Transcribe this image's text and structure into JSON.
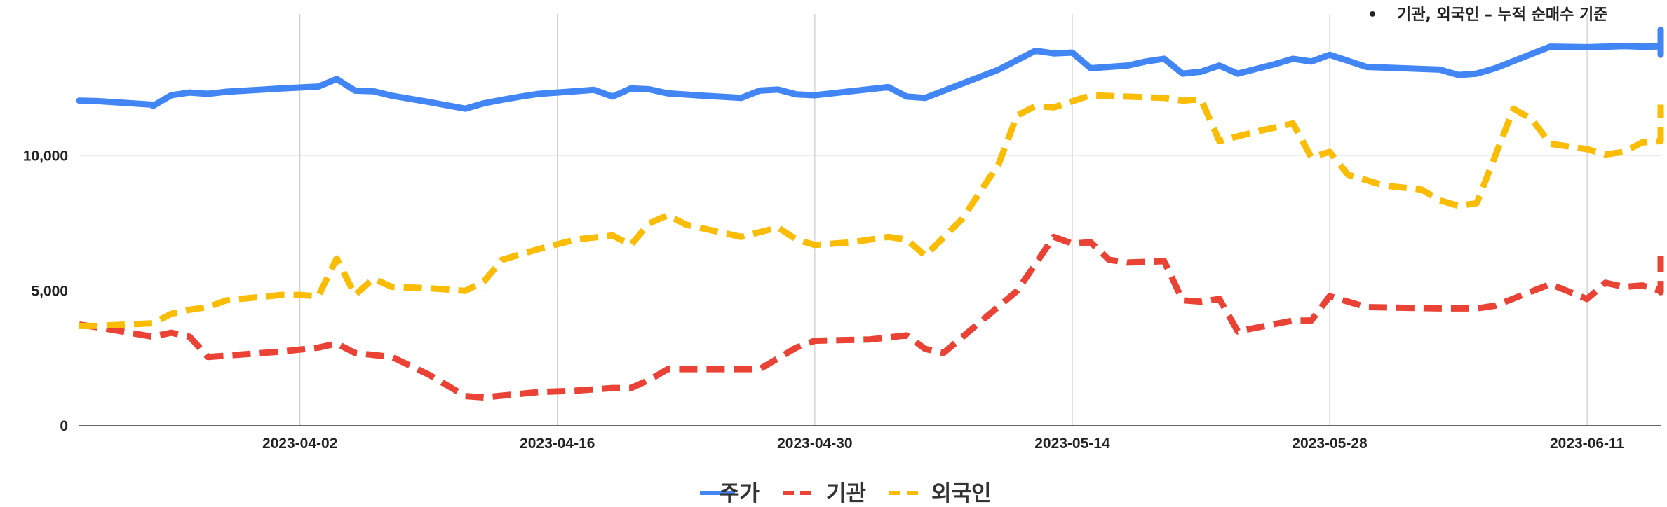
{
  "note": {
    "bullet": "•",
    "text": "기관, 외국인 – 누적 순매수 기준"
  },
  "chart_data": {
    "type": "line",
    "x_axis": "date",
    "x_range": [
      "2023-03-21",
      "2023-06-15"
    ],
    "ylim": [
      0,
      15000
    ],
    "yticks": [
      0,
      5000,
      10000
    ],
    "ytick_labels": [
      "0",
      "5,000",
      "10,000"
    ],
    "xticks": [
      "2023-04-02",
      "2023-04-16",
      "2023-04-30",
      "2023-05-14",
      "2023-05-28",
      "2023-06-11"
    ],
    "grid": {
      "vertical": true,
      "horizontal": true
    },
    "legend_position": "bottom",
    "series": [
      {
        "name": "주가",
        "color": "#4285F4",
        "style": "solid",
        "points": [
          [
            "2023-03-21",
            12050
          ],
          [
            "2023-03-22",
            12030
          ],
          [
            "2023-03-25",
            11900
          ],
          [
            "2023-03-25",
            11850
          ],
          [
            "2023-03-26",
            12250
          ],
          [
            "2023-03-27",
            12350
          ],
          [
            "2023-03-28",
            12300
          ],
          [
            "2023-03-29",
            12380
          ],
          [
            "2023-04-01",
            12500
          ],
          [
            "2023-04-03",
            12570
          ],
          [
            "2023-04-04",
            12850
          ],
          [
            "2023-04-05",
            12420
          ],
          [
            "2023-04-06",
            12400
          ],
          [
            "2023-04-07",
            12230
          ],
          [
            "2023-04-09",
            12000
          ],
          [
            "2023-04-11",
            11750
          ],
          [
            "2023-04-12",
            11950
          ],
          [
            "2023-04-13",
            12080
          ],
          [
            "2023-04-14",
            12200
          ],
          [
            "2023-04-15",
            12300
          ],
          [
            "2023-04-17",
            12400
          ],
          [
            "2023-04-18",
            12450
          ],
          [
            "2023-04-19",
            12200
          ],
          [
            "2023-04-20",
            12500
          ],
          [
            "2023-04-21",
            12470
          ],
          [
            "2023-04-22",
            12320
          ],
          [
            "2023-04-24",
            12230
          ],
          [
            "2023-04-26",
            12150
          ],
          [
            "2023-04-27",
            12420
          ],
          [
            "2023-04-28",
            12460
          ],
          [
            "2023-04-29",
            12280
          ],
          [
            "2023-04-30",
            12250
          ],
          [
            "2023-05-02",
            12400
          ],
          [
            "2023-05-04",
            12550
          ],
          [
            "2023-05-05",
            12200
          ],
          [
            "2023-05-06",
            12150
          ],
          [
            "2023-05-10",
            13200
          ],
          [
            "2023-05-12",
            13900
          ],
          [
            "2023-05-13",
            13800
          ],
          [
            "2023-05-14",
            13830
          ],
          [
            "2023-05-15",
            13250
          ],
          [
            "2023-05-17",
            13350
          ],
          [
            "2023-05-18",
            13500
          ],
          [
            "2023-05-19",
            13600
          ],
          [
            "2023-05-20",
            13050
          ],
          [
            "2023-05-21",
            13120
          ],
          [
            "2023-05-22",
            13350
          ],
          [
            "2023-05-23",
            13050
          ],
          [
            "2023-05-25",
            13400
          ],
          [
            "2023-05-26",
            13600
          ],
          [
            "2023-05-27",
            13500
          ],
          [
            "2023-05-28",
            13750
          ],
          [
            "2023-05-30",
            13300
          ],
          [
            "2023-06-03",
            13200
          ],
          [
            "2023-06-04",
            13000
          ],
          [
            "2023-06-05",
            13050
          ],
          [
            "2023-06-06",
            13250
          ],
          [
            "2023-06-09",
            14050
          ],
          [
            "2023-06-11",
            14030
          ],
          [
            "2023-06-13",
            14070
          ],
          [
            "2023-06-14",
            14050
          ],
          [
            "2023-06-15",
            14060
          ],
          [
            "2023-06-15",
            13820
          ],
          [
            "2023-06-15",
            13750
          ],
          [
            "2023-06-15",
            13830
          ],
          [
            "2023-06-15",
            14680
          ]
        ]
      },
      {
        "name": "기관",
        "color": "#EA4335",
        "style": "dashed",
        "points": [
          [
            "2023-03-21",
            3750
          ],
          [
            "2023-03-22",
            3650
          ],
          [
            "2023-03-25",
            3300
          ],
          [
            "2023-03-26",
            3450
          ],
          [
            "2023-03-27",
            3300
          ],
          [
            "2023-03-28",
            2550
          ],
          [
            "2023-03-29",
            2600
          ],
          [
            "2023-04-01",
            2750
          ],
          [
            "2023-04-03",
            2900
          ],
          [
            "2023-04-04",
            3050
          ],
          [
            "2023-04-05",
            2700
          ],
          [
            "2023-04-07",
            2550
          ],
          [
            "2023-04-09",
            1900
          ],
          [
            "2023-04-11",
            1100
          ],
          [
            "2023-04-12",
            1050
          ],
          [
            "2023-04-15",
            1250
          ],
          [
            "2023-04-17",
            1300
          ],
          [
            "2023-04-19",
            1400
          ],
          [
            "2023-04-20",
            1400
          ],
          [
            "2023-04-21",
            1700
          ],
          [
            "2023-04-22",
            2100
          ],
          [
            "2023-04-23",
            2100
          ],
          [
            "2023-04-27",
            2100
          ],
          [
            "2023-04-29",
            2900
          ],
          [
            "2023-04-30",
            3150
          ],
          [
            "2023-05-03",
            3200
          ],
          [
            "2023-05-05",
            3350
          ],
          [
            "2023-05-06",
            2850
          ],
          [
            "2023-05-07",
            2700
          ],
          [
            "2023-05-11",
            5000
          ],
          [
            "2023-05-13",
            7000
          ],
          [
            "2023-05-14",
            6750
          ],
          [
            "2023-05-15",
            6800
          ],
          [
            "2023-05-16",
            6150
          ],
          [
            "2023-05-17",
            6050
          ],
          [
            "2023-05-19",
            6100
          ],
          [
            "2023-05-20",
            4650
          ],
          [
            "2023-05-21",
            4600
          ],
          [
            "2023-05-22",
            4700
          ],
          [
            "2023-05-23",
            3500
          ],
          [
            "2023-05-26",
            3900
          ],
          [
            "2023-05-27",
            3900
          ],
          [
            "2023-05-28",
            4800
          ],
          [
            "2023-05-30",
            4400
          ],
          [
            "2023-06-03",
            4350
          ],
          [
            "2023-06-05",
            4350
          ],
          [
            "2023-06-06",
            4450
          ],
          [
            "2023-06-09",
            5250
          ],
          [
            "2023-06-11",
            4700
          ],
          [
            "2023-06-12",
            5300
          ],
          [
            "2023-06-13",
            5150
          ],
          [
            "2023-06-14",
            5200
          ],
          [
            "2023-06-15",
            5000
          ],
          [
            "2023-06-15",
            4950
          ],
          [
            "2023-06-15",
            6300
          ]
        ]
      },
      {
        "name": "외국인",
        "color": "#FBBC04",
        "style": "dashed",
        "points": [
          [
            "2023-03-21",
            3700
          ],
          [
            "2023-03-22",
            3700
          ],
          [
            "2023-03-25",
            3800
          ],
          [
            "2023-03-26",
            4150
          ],
          [
            "2023-03-27",
            4300
          ],
          [
            "2023-03-28",
            4400
          ],
          [
            "2023-03-29",
            4650
          ],
          [
            "2023-04-01",
            4850
          ],
          [
            "2023-04-02",
            4850
          ],
          [
            "2023-04-03",
            4800
          ],
          [
            "2023-04-04",
            6200
          ],
          [
            "2023-04-05",
            4850
          ],
          [
            "2023-04-06",
            5450
          ],
          [
            "2023-04-07",
            5150
          ],
          [
            "2023-04-09",
            5100
          ],
          [
            "2023-04-11",
            5000
          ],
          [
            "2023-04-12",
            5350
          ],
          [
            "2023-04-13",
            6150
          ],
          [
            "2023-04-15",
            6550
          ],
          [
            "2023-04-17",
            6900
          ],
          [
            "2023-04-19",
            7050
          ],
          [
            "2023-04-20",
            6700
          ],
          [
            "2023-04-21",
            7500
          ],
          [
            "2023-04-22",
            7800
          ],
          [
            "2023-04-23",
            7450
          ],
          [
            "2023-04-26",
            7000
          ],
          [
            "2023-04-28",
            7350
          ],
          [
            "2023-04-29",
            6900
          ],
          [
            "2023-04-30",
            6700
          ],
          [
            "2023-05-02",
            6800
          ],
          [
            "2023-05-04",
            7000
          ],
          [
            "2023-05-05",
            6900
          ],
          [
            "2023-05-06",
            6300
          ],
          [
            "2023-05-08",
            7650
          ],
          [
            "2023-05-10",
            9700
          ],
          [
            "2023-05-11",
            11500
          ],
          [
            "2023-05-12",
            11850
          ],
          [
            "2023-05-13",
            11800
          ],
          [
            "2023-05-15",
            12250
          ],
          [
            "2023-05-19",
            12150
          ],
          [
            "2023-05-20",
            12050
          ],
          [
            "2023-05-21",
            12100
          ],
          [
            "2023-05-22",
            10550
          ],
          [
            "2023-05-24",
            10900
          ],
          [
            "2023-05-26",
            11200
          ],
          [
            "2023-05-27",
            9950
          ],
          [
            "2023-05-28",
            10150
          ],
          [
            "2023-05-29",
            9300
          ],
          [
            "2023-05-31",
            8900
          ],
          [
            "2023-06-02",
            8750
          ],
          [
            "2023-06-03",
            8350
          ],
          [
            "2023-06-04",
            8150
          ],
          [
            "2023-06-05",
            8250
          ],
          [
            "2023-06-07",
            11750
          ],
          [
            "2023-06-08",
            11350
          ],
          [
            "2023-06-09",
            10450
          ],
          [
            "2023-06-11",
            10250
          ],
          [
            "2023-06-12",
            10050
          ],
          [
            "2023-06-13",
            10150
          ],
          [
            "2023-06-14",
            10500
          ],
          [
            "2023-06-15",
            10550
          ],
          [
            "2023-06-15",
            11900
          ]
        ]
      }
    ]
  }
}
